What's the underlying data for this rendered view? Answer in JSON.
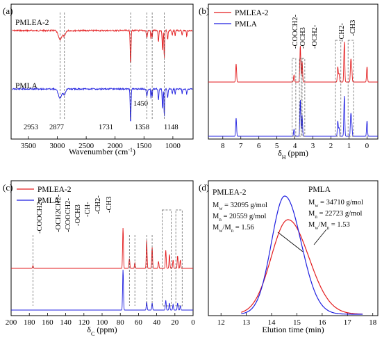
{
  "colors": {
    "red": "#e31a1c",
    "blue": "#1f1fe0",
    "guide": "#555555"
  },
  "chart_data": [
    {
      "panel_label": "(a)",
      "type": "line",
      "xlabel": "Wavenumber (cm",
      "xlabel_sup": "-1",
      "xlabel_tail": ")",
      "xlim": [
        3800,
        650
      ],
      "xticks": [
        "3500",
        "3000",
        "2500",
        "2000",
        "1500",
        "1000"
      ],
      "series": [
        {
          "name": "PMLEA-2",
          "color": "#e31a1c"
        },
        {
          "name": "PMLA",
          "color": "#1f1fe0"
        }
      ],
      "peaks": [
        "2953",
        "2877",
        "1731",
        "1450",
        "1358",
        "1148"
      ]
    },
    {
      "panel_label": "(b)",
      "type": "line",
      "xlabel": "δ",
      "xlabel_sub": "H",
      "xlabel_tail": " (ppm)",
      "xlim": [
        8.8,
        -0.6
      ],
      "xticks": [
        "8",
        "7",
        "6",
        "5",
        "4",
        "3",
        "2",
        "1",
        "0"
      ],
      "series": [
        {
          "name": "PMLEA-2",
          "color": "#e31a1c"
        },
        {
          "name": "PMLA",
          "color": "#1f1fe0"
        }
      ],
      "assignments": [
        "-COOCH2-",
        "-OCH3",
        "-OCH2-",
        "-CH2-",
        "-CH3"
      ]
    },
    {
      "panel_label": "(c)",
      "type": "line",
      "xlabel": "δ",
      "xlabel_sub": "C",
      "xlabel_tail": " (ppm)",
      "xlim": [
        200,
        0
      ],
      "xticks": [
        "200",
        "180",
        "160",
        "140",
        "120",
        "100",
        "80",
        "60",
        "40",
        "20",
        "0"
      ],
      "series": [
        {
          "name": "PMLEA-2",
          "color": "#e31a1c"
        },
        {
          "name": "PMLA",
          "color": "#1f1fe0"
        }
      ],
      "assignments": [
        "-COOCH2-",
        "-OCH2CH2-",
        "-COOCH2-",
        "-OCH3",
        "-CH-",
        "-CH2-",
        "-CH3"
      ]
    },
    {
      "panel_label": "(d)",
      "type": "line",
      "xlabel": "Elution time (min)",
      "xlim": [
        11.5,
        18.2
      ],
      "xticks": [
        "12",
        "13",
        "14",
        "15",
        "16",
        "17",
        "18"
      ],
      "series": [
        {
          "name": "PMLEA-2",
          "color": "#e31a1c",
          "peak_x": 14.65,
          "peak_y": 0.8,
          "sigma": 0.78
        },
        {
          "name": "PMLA",
          "color": "#1f1fe0",
          "peak_x": 14.52,
          "peak_y": 1.0,
          "sigma": 0.62
        }
      ],
      "annotations": {
        "PMLEA-2": {
          "title": "PMLEA-2",
          "Mw": "32095",
          "Mn": "20559",
          "PDI": "1.56",
          "unit": "g/mol"
        },
        "PMLA": {
          "title": "PMLA",
          "Mw": "34710",
          "Mn": "22723",
          "PDI": "1.53",
          "unit": "g/mol"
        }
      }
    }
  ]
}
